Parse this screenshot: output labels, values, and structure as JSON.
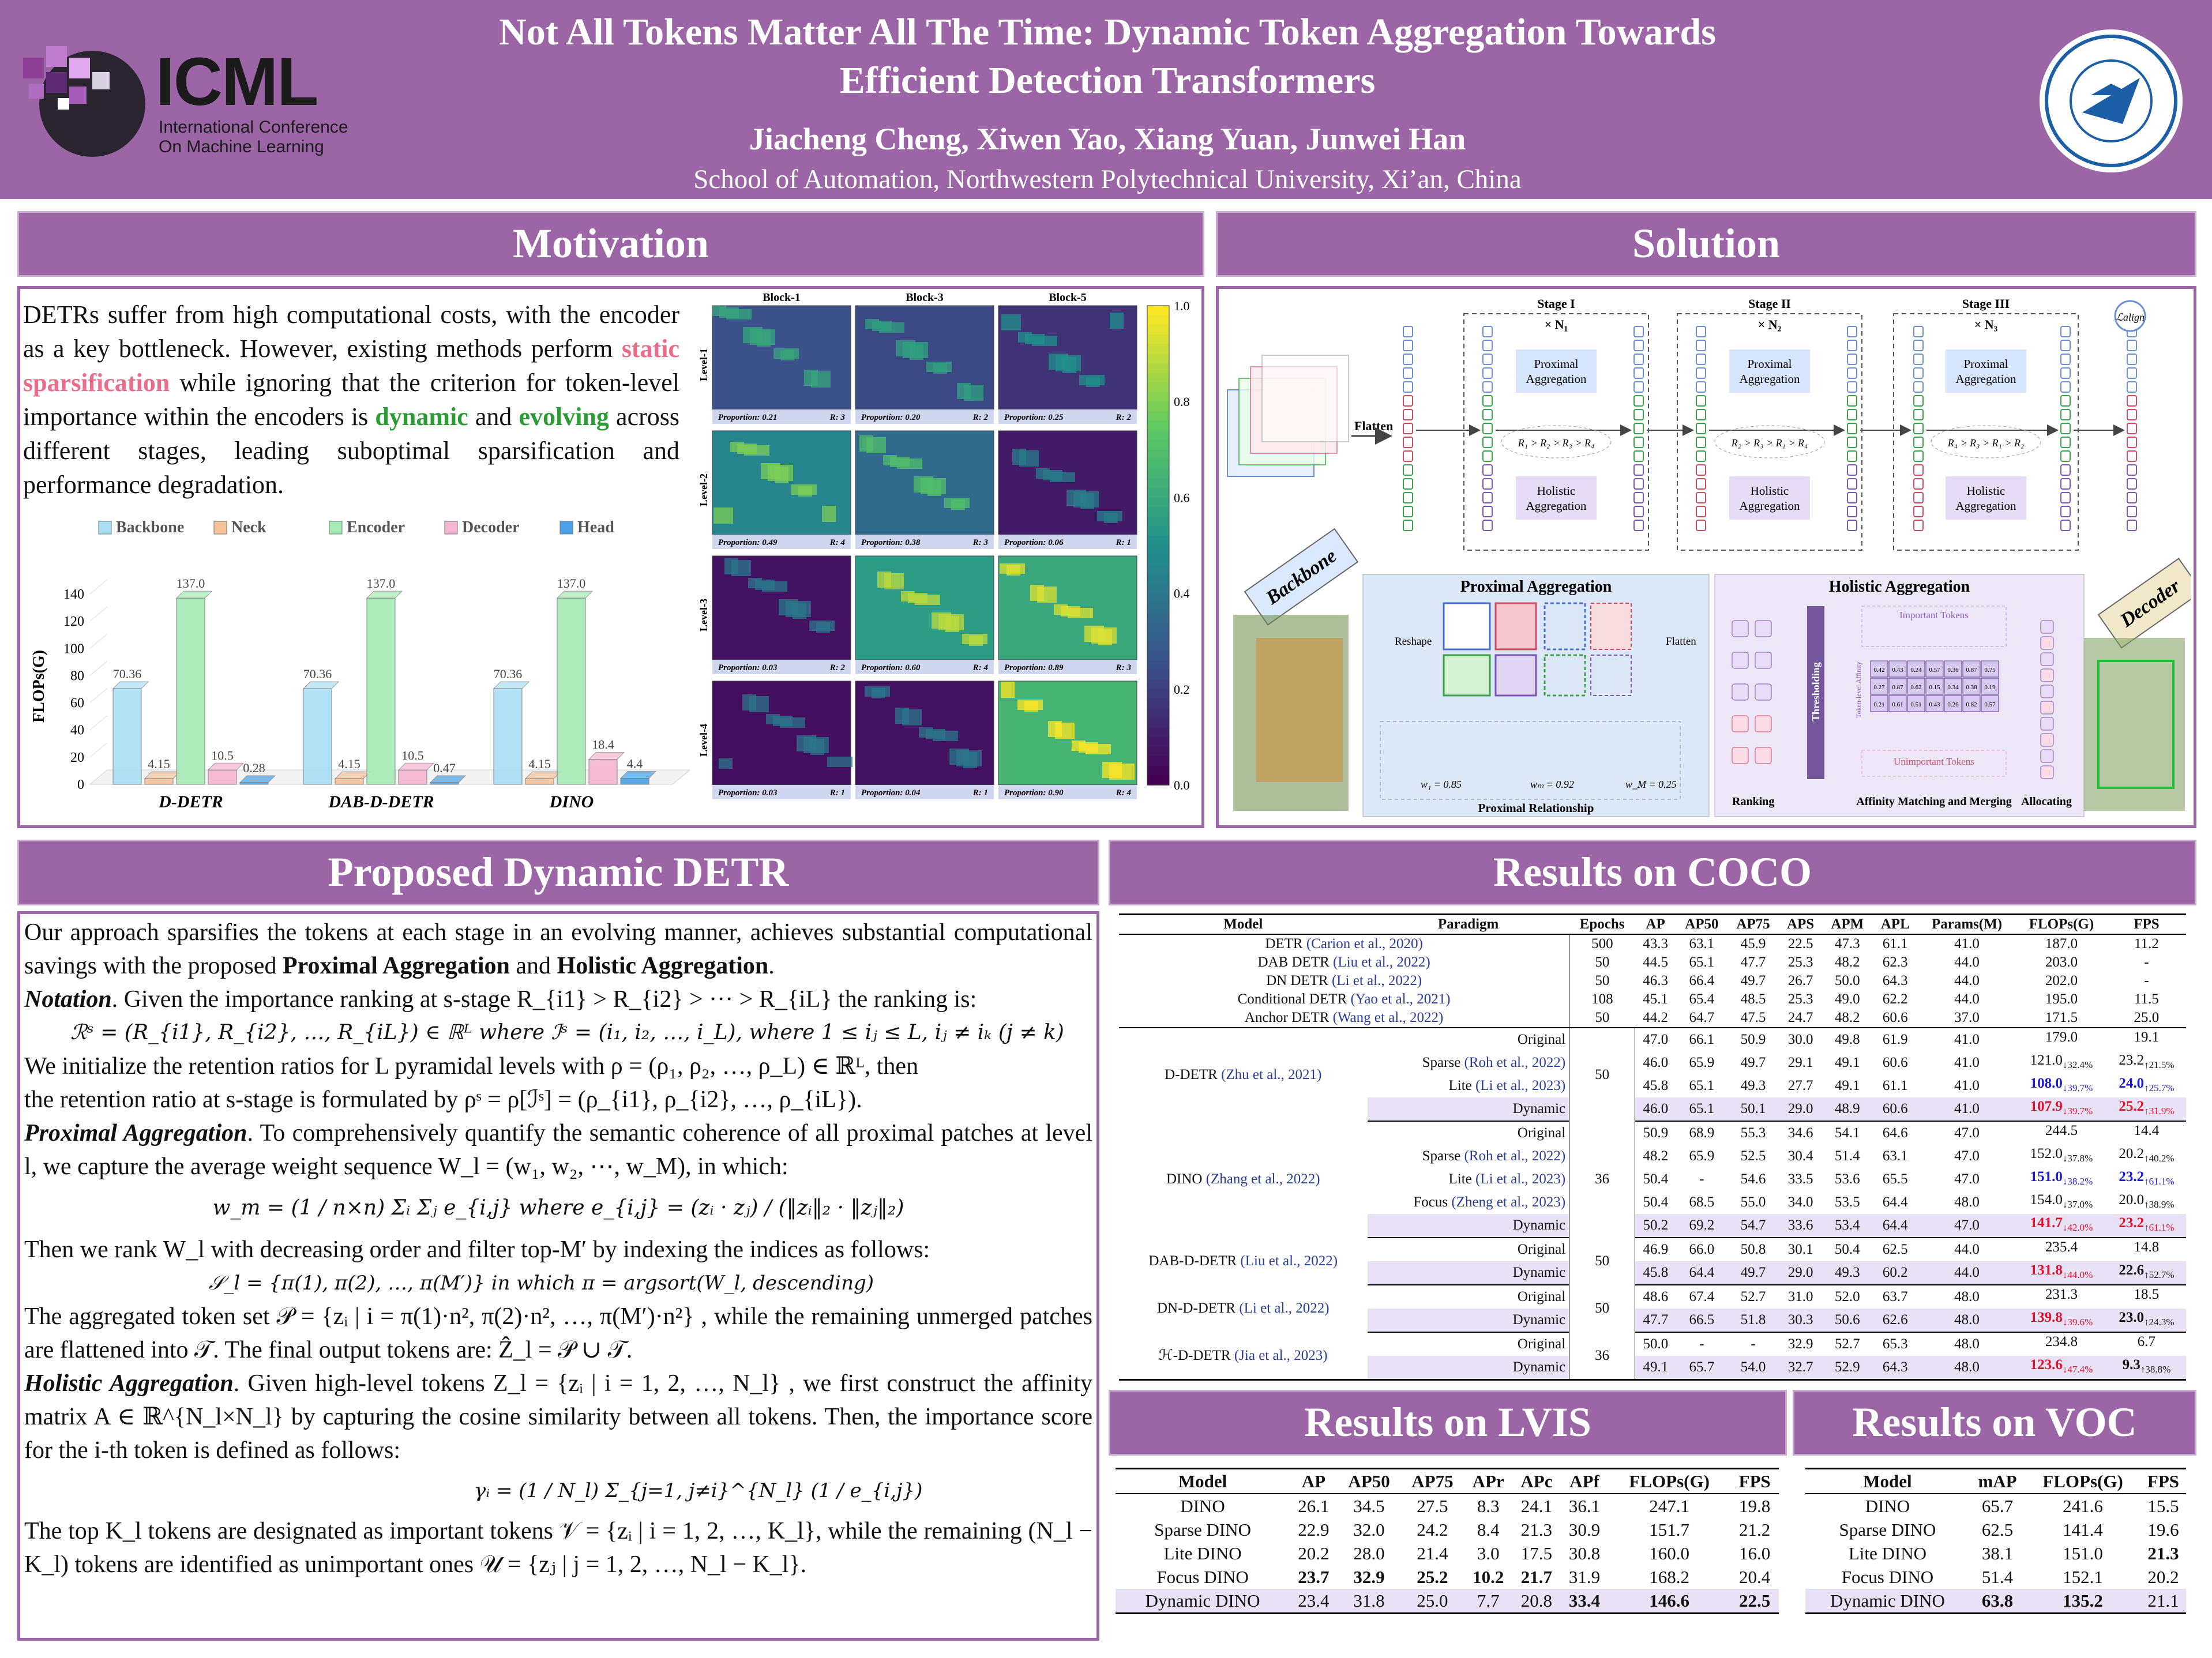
{
  "header": {
    "title_line1": "Not All Tokens Matter All The Time: Dynamic Token Aggregation Towards",
    "title_line2": "Efficient Detection Transformers",
    "authors": "Jiacheng Cheng,   Xiwen Yao,   Xiang Yuan,   Junwei Han",
    "affiliation": "School of Automation, Northwestern Polytechnical University, Xi’an, China",
    "icml_logo": "ICML",
    "icml_sub1": "International Conference",
    "icml_sub2": "On Machine Learning"
  },
  "sections": {
    "motivation": "Motivation",
    "solution": "Solution",
    "proposed": "Proposed Dynamic DETR",
    "coco": "Results on COCO",
    "lvis": "Results on LVIS",
    "voc": "Results on VOC"
  },
  "motivation": {
    "t1": "DETRs suffer from high computational costs, with the encoder as a key bottleneck. However, existing methods perform ",
    "t2": "static sparsification",
    "t3": " while ignoring that the criterion for token-level importance within the encoders is ",
    "t4": "dynamic",
    "t5": " and ",
    "t6": "evolving",
    "t7": " across different stages, leading suboptimal sparsification and performance degradation."
  },
  "chart_data": {
    "type": "bar",
    "categories": [
      "D-DETR",
      "DAB-D-DETR",
      "DINO"
    ],
    "series": [
      {
        "name": "Backbone",
        "values": [
          70.36,
          70.36,
          70.36
        ],
        "color": "#a9dff5"
      },
      {
        "name": "Neck",
        "values": [
          4.15,
          4.15,
          4.15
        ],
        "color": "#f5c39a"
      },
      {
        "name": "Encoder",
        "values": [
          137.0,
          137.0,
          137.0
        ],
        "color": "#a6ebb4"
      },
      {
        "name": "Decoder",
        "values": [
          10.5,
          10.5,
          18.4
        ],
        "color": "#f5b6cf"
      },
      {
        "name": "Head",
        "values": [
          0.28,
          0.47,
          4.4
        ],
        "color": "#4aa1e8"
      }
    ],
    "ylabel": "FLOPs(G)",
    "ylim": [
      0,
      140
    ],
    "yticks": [
      "0",
      "20",
      "40",
      "60",
      "80",
      "100",
      "120",
      "140"
    ],
    "data_labels": [
      [
        "70.36",
        "4.15",
        "137.0",
        "10.5",
        "0.28"
      ],
      [
        "70.36",
        "4.15",
        "137.0",
        "10.5",
        "0.47"
      ],
      [
        "70.36",
        "4.15",
        "137.0",
        "18.4",
        "4.4"
      ]
    ],
    "legend": "top"
  },
  "heatmap": {
    "cols": [
      "Block-1",
      "Block-3",
      "Block-5"
    ],
    "rows": [
      "Level-1",
      "Level-2",
      "Level-3",
      "Level-4"
    ],
    "captions": [
      [
        [
          "Proportion: 0.21",
          "R: 3"
        ],
        [
          "Proportion: 0.20",
          "R: 2"
        ],
        [
          "Proportion: 0.25",
          "R: 2"
        ]
      ],
      [
        [
          "Proportion: 0.49",
          "R: 4"
        ],
        [
          "Proportion: 0.38",
          "R: 3"
        ],
        [
          "Proportion: 0.06",
          "R: 1"
        ]
      ],
      [
        [
          "Proportion: 0.03",
          "R: 2"
        ],
        [
          "Proportion: 0.60",
          "R: 4"
        ],
        [
          "Proportion: 0.89",
          "R: 3"
        ]
      ],
      [
        [
          "Proportion: 0.03",
          "R: 1"
        ],
        [
          "Proportion: 0.04",
          "R: 1"
        ],
        [
          "Proportion: 0.90",
          "R: 4"
        ]
      ]
    ],
    "levels": [
      [
        0.25,
        0.22,
        0.15
      ],
      [
        0.45,
        0.35,
        0.08
      ],
      [
        0.05,
        0.55,
        0.6
      ],
      [
        0.04,
        0.05,
        0.65
      ]
    ],
    "colorbar": [
      "1.0",
      "0.8",
      "0.6",
      "0.4",
      "0.2",
      "0.0"
    ]
  },
  "solution": {
    "stage1": "Stage I",
    "stage2": "Stage II",
    "stage3": "Stage III",
    "n1": "× N₁",
    "n2": "× N₂",
    "n3": "× N₃",
    "prox": "Proximal Aggregation",
    "holi": "Holistic Aggregation",
    "rank1": "R₁ > R₂ > R₃ > R₄",
    "rank2": "R₂ > R₃ > R₁ > R₄",
    "rank3": "R₄ > R₃ > R₁ > R₂",
    "flatten": "Flatten",
    "backbone": "Backbone",
    "decoder": "Decoder",
    "lalign": "ℒalign",
    "prox_title": "Proximal Aggregation",
    "holi_title": "Holistic Aggregation",
    "reshape": "Reshape",
    "flatten2": "Flatten",
    "w1": "w₁ = 0.85",
    "wm": "wₘ = 0.92",
    "wm2": "w_M = 0.25",
    "prox_rel": "Proximal Relationship",
    "ranking": "Ranking",
    "thresholding": "Thresholding",
    "important": "Important Tokens",
    "unimportant": "Unimportant Tokens",
    "affinity": "Affinity Matching and Merging",
    "allocating": "Allocating",
    "token_aff": "Token-level Affinity",
    "aff_vals": [
      "0.42",
      "0.43",
      "0.24",
      "0.57",
      "0.36",
      "0.87",
      "0.75",
      "0.27",
      "0.87",
      "0.62",
      "0.15",
      "0.34",
      "0.38",
      "0.19",
      "0.21",
      "0.61",
      "0.51",
      "0.43",
      "0.26",
      "0.82",
      "0.57"
    ]
  },
  "proposed": {
    "p1a": "Our approach sparsifies the tokens at each stage in an evolving manner, achieves substantial computational savings with the proposed ",
    "p1b": "Proximal Aggregation",
    "p1c": " and ",
    "p1d": "Holistic Aggregation",
    "p1e": ".",
    "notation": "Notation",
    "n_text": ". Given the importance ranking at s-stage R_{i1} > R_{i2} > ··· > R_{iL} the ranking is:",
    "eq_rank": "ℛˢ = (R_{i1}, R_{i2}, …, R_{iL}) ∈ ℝᴸ  where  ℐˢ = (i₁, i₂, …, i_L), where 1 ≤ iⱼ ≤ L, iⱼ ≠ iₖ (j ≠ k)",
    "init": "We initialize the retention ratios for L pyramidal levels with ρ = (ρ₁, ρ₂, …, ρ_L) ∈ ℝᴸ, then",
    "init2": "the retention ratio at s-stage is formulated by ρˢ = ρ[ℐˢ] = (ρ_{i1}, ρ_{i2}, …, ρ_{iL}).",
    "pa": "Proximal Aggregation",
    "pa_text": ". To comprehensively quantify the semantic coherence of all proximal patches at level l, we capture the average weight sequence W_l = (w₁, w₂, ⋯, w_M), in which:",
    "eq_w": "w_m = (1 / n×n) Σᵢ Σⱼ e_{i,j}   where   e_{i,j} = (zᵢ · zⱼ) / (‖zᵢ‖₂ · ‖zⱼ‖₂)",
    "rank_text": "Then we rank  W_l with decreasing order and filter top-M′ by indexing the indices as follows:",
    "eq_s": "𝒮_l = {π(1), π(2), …, π(M′)}   in which   π = argsort(W_l, descending)",
    "agg_text": "The aggregated token set 𝒫 = {zᵢ | i = π(1)·n², π(2)·n², …, π(M′)·n²}   , while the remaining unmerged patches are flattened into 𝒯. The final output tokens are: Ẑ_l = 𝒫 ∪ 𝒯.",
    "ha": "Holistic Aggregation",
    "ha_text": ". Given high-level tokens  Z_l = {zᵢ | i = 1, 2, …, N_l}  , we first construct the affinity matrix A ∈ ℝ^{N_l×N_l}  by capturing the cosine similarity between all tokens. Then, the importance score for the i-th token is defined as follows:",
    "eq_g": "γᵢ = (1 / N_l) Σ_{j=1, j≠i}^{N_l} (1 / e_{i,j})",
    "last": "The top K_l tokens are designated as important tokens 𝒱 = {zᵢ | i = 1, 2, …, K_l}, while the remaining (N_l − K_l) tokens are identified as unimportant ones 𝒰 = {zⱼ | j = 1, 2, …, N_l − K_l}."
  },
  "coco": {
    "headers": [
      "Model",
      "Paradigm",
      "Epochs",
      "AP",
      "AP50",
      "AP75",
      "APS",
      "APM",
      "APL",
      "Params(M)",
      "FLOPs(G)",
      "FPS"
    ],
    "top": [
      [
        "DETR",
        "(Carion et al., 2020)",
        "500",
        "43.3",
        "63.1",
        "45.9",
        "22.5",
        "47.3",
        "61.1",
        "41.0",
        "187.0",
        "11.2"
      ],
      [
        "DAB DETR",
        "(Liu et al., 2022)",
        "50",
        "44.5",
        "65.1",
        "47.7",
        "25.3",
        "48.2",
        "62.3",
        "44.0",
        "203.0",
        "-"
      ],
      [
        "DN DETR",
        "(Li et al., 2022)",
        "50",
        "46.3",
        "66.4",
        "49.7",
        "26.7",
        "50.0",
        "64.3",
        "44.0",
        "202.0",
        "-"
      ],
      [
        "Conditional DETR",
        "(Yao et al., 2021)",
        "108",
        "45.1",
        "65.4",
        "48.5",
        "25.3",
        "49.0",
        "62.2",
        "44.0",
        "195.0",
        "11.5"
      ],
      [
        "Anchor DETR",
        "(Wang et al., 2022)",
        "50",
        "44.2",
        "64.7",
        "47.5",
        "24.7",
        "48.2",
        "60.6",
        "37.0",
        "171.5",
        "25.0"
      ]
    ],
    "groups": [
      {
        "model": "D-DETR",
        "cite": "(Zhu et al., 2021)",
        "epochs": "50",
        "rows": [
          [
            "Original",
            "",
            "47.0",
            "66.1",
            "50.9",
            "30.0",
            "49.8",
            "61.9",
            "41.0",
            "179.0",
            "",
            "19.1",
            ""
          ],
          [
            "Sparse",
            "(Roh et al., 2022)",
            "46.0",
            "65.9",
            "49.7",
            "29.1",
            "49.1",
            "60.6",
            "41.0",
            "121.0",
            "↓32.4%",
            "23.2",
            "↑21.5%"
          ],
          [
            "Lite",
            "(Li et al., 2023)",
            "45.8",
            "65.1",
            "49.3",
            "27.7",
            "49.1",
            "61.1",
            "41.0",
            "108.0",
            "↓39.7%",
            "24.0",
            "↑25.7%"
          ],
          [
            "Dynamic",
            "",
            "46.0",
            "65.1",
            "50.1",
            "29.0",
            "48.9",
            "60.6",
            "41.0",
            "107.9",
            "↓39.7%",
            "25.2",
            "↑31.9%"
          ]
        ]
      },
      {
        "model": "DINO",
        "cite": "(Zhang et al., 2022)",
        "epochs": "36",
        "rows": [
          [
            "Original",
            "",
            "50.9",
            "68.9",
            "55.3",
            "34.6",
            "54.1",
            "64.6",
            "47.0",
            "244.5",
            "",
            "14.4",
            ""
          ],
          [
            "Sparse",
            "(Roh et al., 2022)",
            "48.2",
            "65.9",
            "52.5",
            "30.4",
            "51.4",
            "63.1",
            "47.0",
            "152.0",
            "↓37.8%",
            "20.2",
            "↑40.2%"
          ],
          [
            "Lite",
            "(Li et al., 2023)",
            "50.4",
            "-",
            "54.6",
            "33.5",
            "53.6",
            "65.5",
            "47.0",
            "151.0",
            "↓38.2%",
            "23.2",
            "↑61.1%"
          ],
          [
            "Focus",
            "(Zheng et al., 2023)",
            "50.4",
            "68.5",
            "55.0",
            "34.0",
            "53.5",
            "64.4",
            "48.0",
            "154.0",
            "↓37.0%",
            "20.0",
            "↑38.9%"
          ],
          [
            "Dynamic",
            "",
            "50.2",
            "69.2",
            "54.7",
            "33.6",
            "53.4",
            "64.4",
            "47.0",
            "141.7",
            "↓42.0%",
            "23.2",
            "↑61.1%"
          ]
        ]
      },
      {
        "model": "DAB-D-DETR",
        "cite": "(Liu et al., 2022)",
        "epochs": "50",
        "rows": [
          [
            "Original",
            "",
            "46.9",
            "66.0",
            "50.8",
            "30.1",
            "50.4",
            "62.5",
            "44.0",
            "235.4",
            "",
            "14.8",
            ""
          ],
          [
            "Dynamic",
            "",
            "45.8",
            "64.4",
            "49.7",
            "29.0",
            "49.3",
            "60.2",
            "44.0",
            "131.8",
            "↓44.0%",
            "22.6",
            "↑52.7%"
          ]
        ]
      },
      {
        "model": "DN-D-DETR",
        "cite": "(Li et al., 2022)",
        "epochs": "50",
        "rows": [
          [
            "Original",
            "",
            "48.6",
            "67.4",
            "52.7",
            "31.0",
            "52.0",
            "63.7",
            "48.0",
            "231.3",
            "",
            "18.5",
            ""
          ],
          [
            "Dynamic",
            "",
            "47.7",
            "66.5",
            "51.8",
            "30.3",
            "50.6",
            "62.6",
            "48.0",
            "139.8",
            "↓39.6%",
            "23.0",
            "↑24.3%"
          ]
        ]
      },
      {
        "model": "ℋ-D-DETR",
        "cite": "(Jia et al., 2023)",
        "epochs": "36",
        "rows": [
          [
            "Original",
            "",
            "50.0",
            "-",
            "-",
            "32.9",
            "52.7",
            "65.3",
            "48.0",
            "234.8",
            "",
            "6.7",
            ""
          ],
          [
            "Dynamic",
            "",
            "49.1",
            "65.7",
            "54.0",
            "32.7",
            "52.9",
            "64.3",
            "48.0",
            "123.6",
            "↓47.4%",
            "9.3",
            "↑38.8%"
          ]
        ]
      }
    ]
  },
  "lvis": {
    "headers": [
      "Model",
      "AP",
      "AP50",
      "AP75",
      "APr",
      "APc",
      "APf",
      "FLOPs(G)",
      "FPS"
    ],
    "rows": [
      [
        "DINO",
        "26.1",
        "34.5",
        "27.5",
        "8.3",
        "24.1",
        "36.1",
        "247.1",
        "19.8"
      ],
      [
        "Sparse DINO",
        "22.9",
        "32.0",
        "24.2",
        "8.4",
        "21.3",
        "30.9",
        "151.7",
        "21.2"
      ],
      [
        "Lite DINO",
        "20.2",
        "28.0",
        "21.4",
        "3.0",
        "17.5",
        "30.8",
        "160.0",
        "16.0"
      ],
      [
        "Focus DINO",
        "23.7",
        "32.9",
        "25.2",
        "10.2",
        "21.7",
        "31.9",
        "168.2",
        "20.4"
      ],
      [
        "Dynamic DINO",
        "23.4",
        "31.8",
        "25.0",
        "7.7",
        "20.8",
        "33.4",
        "146.6",
        "22.5"
      ]
    ]
  },
  "voc": {
    "headers": [
      "Model",
      "mAP",
      "FLOPs(G)",
      "FPS"
    ],
    "rows": [
      [
        "DINO",
        "65.7",
        "241.6",
        "15.5"
      ],
      [
        "Sparse DINO",
        "62.5",
        "141.4",
        "19.6"
      ],
      [
        "Lite DINO",
        "38.1",
        "151.0",
        "21.3"
      ],
      [
        "Focus DINO",
        "51.4",
        "152.1",
        "20.2"
      ],
      [
        "Dynamic DINO",
        "63.8",
        "135.2",
        "21.1"
      ]
    ]
  },
  "colors": {
    "accent": "#9b65a6",
    "highlight": "#e9e2f7",
    "blue_best": "#1a1ad0",
    "red_best": "#e0102a"
  }
}
